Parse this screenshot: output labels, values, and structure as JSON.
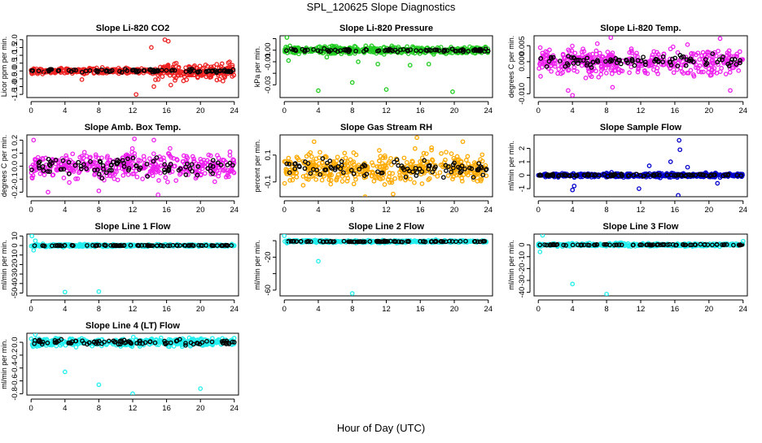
{
  "page": {
    "title": "SPL_120625  Slope Diagnostics",
    "xlabel": "Hour of Day (UTC)"
  },
  "chart_data": [
    {
      "id": "co2",
      "type": "scatter",
      "title": "Slope Li-820 CO2",
      "ylabel": "Licor ppm per min.",
      "color": "#ee2222",
      "ylim": [
        -1.7,
        2.25
      ],
      "yticks": [
        -1.5,
        -1.0,
        -0.5,
        0.0,
        0.5,
        1.0,
        1.5,
        2.0
      ],
      "yticklabels": [
        "-1.5",
        "-1.0",
        "-0.5",
        "0.0",
        "0.5",
        "1.0",
        "1.5",
        "2.0"
      ],
      "xlim": [
        -0.5,
        24.5
      ],
      "xticks": [
        0,
        4,
        8,
        12,
        16,
        20,
        24
      ],
      "xticklabels": [
        "0",
        "4",
        "8",
        "12",
        "16",
        "20",
        "24"
      ],
      "spread": 0.14,
      "spread_late": 0.42,
      "black_spread": 0.1,
      "outliers": [
        [
          15.8,
          2.0
        ],
        [
          16.2,
          1.9
        ],
        [
          14.2,
          1.5
        ],
        [
          16.5,
          -0.9
        ],
        [
          17,
          -0.6
        ],
        [
          6,
          -0.55
        ],
        [
          12.4,
          -1.5
        ],
        [
          14.5,
          -1.0
        ],
        [
          1.6,
          -0.1
        ]
      ]
    },
    {
      "id": "pressure",
      "type": "scatter",
      "title": "Slope Li-820 Pressure",
      "ylabel": "kPa per min.",
      "color": "#22cc22",
      "ylim": [
        -0.041,
        0.0125
      ],
      "yticks": [
        -0.03,
        -0.02,
        -0.01,
        0.0,
        0.01
      ],
      "yticklabels": [
        "-0.03",
        "",
        "-0.01",
        "0.00",
        ""
      ],
      "xlim": [
        -0.5,
        24.5
      ],
      "xticks": [
        0,
        4,
        8,
        12,
        16,
        20,
        24
      ],
      "xticklabels": [
        "0",
        "4",
        "8",
        "12",
        "16",
        "20",
        "24"
      ],
      "spread": 0.0025,
      "spread_late": 0.0025,
      "black_spread": 0.0015,
      "outliers": [
        [
          0.3,
          0.011
        ],
        [
          4,
          -0.035
        ],
        [
          8,
          -0.028
        ],
        [
          12,
          -0.034
        ],
        [
          19.8,
          -0.036
        ],
        [
          0.5,
          -0.009
        ],
        [
          11,
          -0.012
        ],
        [
          14.8,
          -0.013
        ],
        [
          8.7,
          -0.01
        ],
        [
          5,
          -0.006
        ],
        [
          17,
          -0.012
        ]
      ]
    },
    {
      "id": "temp",
      "type": "scatter",
      "title": "Slope Li-820 Temp.",
      "ylabel": "degrees C per min.",
      "color": "#ee22ee",
      "ylim": [
        -0.0112,
        0.0081
      ],
      "yticks": [
        -0.01,
        -0.005,
        0.0,
        0.005
      ],
      "yticklabels": [
        "-0.010",
        "",
        "0.000",
        "0.005"
      ],
      "xlim": [
        -0.5,
        24.5
      ],
      "xticks": [
        0,
        4,
        8,
        12,
        16,
        20,
        24
      ],
      "xticklabels": [
        "0",
        "4",
        "8",
        "12",
        "16",
        "20",
        "24"
      ],
      "spread": 0.0032,
      "spread_late": 0.0032,
      "black_spread": 0.002,
      "outliers": [
        [
          8.5,
          0.0075
        ],
        [
          8.7,
          -0.008
        ],
        [
          3.5,
          -0.009
        ],
        [
          22.5,
          -0.009
        ],
        [
          21.3,
          0.0072
        ],
        [
          4,
          -0.0105
        ]
      ]
    },
    {
      "id": "boxtemp",
      "type": "scatter",
      "title": "Slope Amb. Box Temp.",
      "ylabel": "degrees C per min.",
      "color": "#ee22ee",
      "ylim": [
        -0.235,
        0.24
      ],
      "yticks": [
        -0.2,
        -0.1,
        0.0,
        0.1,
        0.2
      ],
      "yticklabels": [
        "-0.2",
        "-0.1",
        "0.0",
        "0.1",
        "0.2"
      ],
      "xlim": [
        -0.5,
        24.5
      ],
      "xticks": [
        0,
        4,
        8,
        12,
        16,
        20,
        24
      ],
      "xticklabels": [
        "0",
        "4",
        "8",
        "12",
        "16",
        "20",
        "24"
      ],
      "spread": 0.08,
      "spread_late": 0.08,
      "black_spread": 0.07,
      "outliers": [
        [
          15,
          -0.22
        ],
        [
          12.2,
          0.21
        ],
        [
          14.5,
          0.2
        ],
        [
          2,
          -0.2
        ],
        [
          8,
          -0.19
        ],
        [
          0.3,
          0.2
        ]
      ]
    },
    {
      "id": "rh",
      "type": "scatter",
      "title": "Slope Gas Stream RH",
      "ylabel": "percent per min.",
      "color": "#ffaa00",
      "ylim": [
        -0.21,
        0.25
      ],
      "yticks": [
        -0.1,
        0.1
      ],
      "yticklabels": [
        "-0.1",
        "0.1"
      ],
      "xlim": [
        -0.5,
        24.5
      ],
      "xticks": [
        0,
        4,
        8,
        12,
        16,
        20,
        24
      ],
      "xticklabels": [
        "0",
        "4",
        "8",
        "12",
        "16",
        "20",
        "24"
      ],
      "spread": 0.09,
      "spread_late": 0.09,
      "black_spread": 0.06,
      "outliers": [
        [
          15.6,
          0.23
        ],
        [
          9.5,
          -0.21
        ],
        [
          3.5,
          0.2
        ],
        [
          21,
          0.2
        ],
        [
          12.8,
          -0.19
        ]
      ]
    },
    {
      "id": "sample",
      "type": "scatter",
      "title": "Slope Sample Flow",
      "ylabel": "ml/min per min.",
      "color": "#0000cc",
      "ylim": [
        -1.6,
        3.0
      ],
      "yticks": [
        -1,
        0,
        1,
        2
      ],
      "yticklabels": [
        "-1",
        "0",
        "1",
        "2"
      ],
      "xlim": [
        -0.5,
        24.5
      ],
      "xticks": [
        0,
        4,
        8,
        12,
        16,
        20,
        24
      ],
      "xticklabels": [
        "0",
        "4",
        "8",
        "12",
        "16",
        "20",
        "24"
      ],
      "spread": 0.12,
      "spread_late": 0.12,
      "black_spread": 0.08,
      "outliers": [
        [
          16.5,
          2.6
        ],
        [
          16.6,
          1.9
        ],
        [
          16.4,
          -1.5
        ],
        [
          4,
          -1.1
        ],
        [
          15.5,
          1.0
        ],
        [
          17.5,
          0.6
        ],
        [
          11.8,
          -1.0
        ],
        [
          4.2,
          -0.8
        ],
        [
          21,
          -0.6
        ],
        [
          13,
          0.7
        ]
      ]
    },
    {
      "id": "line1",
      "type": "scatter",
      "title": "Slope Line 1 Flow",
      "ylabel": "ml/min per min.",
      "color": "#22eeee",
      "ylim": [
        -53,
        12
      ],
      "yticks": [
        -50,
        -40,
        -30,
        -20,
        -10,
        0,
        10
      ],
      "yticklabels": [
        "-50",
        "-40",
        "-30",
        "-20",
        "-10",
        "0",
        "10"
      ],
      "xlim": [
        -0.5,
        24.5
      ],
      "xticks": [
        0,
        4,
        8,
        12,
        16,
        20,
        24
      ],
      "xticklabels": [
        "0",
        "4",
        "8",
        "12",
        "16",
        "20",
        "24"
      ],
      "spread": 1.0,
      "spread_late": 1.0,
      "black_spread": 0.4,
      "level": 0,
      "outliers": [
        [
          4,
          -49
        ],
        [
          8,
          -48.5
        ],
        [
          0.1,
          10
        ],
        [
          0.3,
          -5
        ],
        [
          0.5,
          5
        ]
      ]
    },
    {
      "id": "line2",
      "type": "scatter",
      "title": "Slope Line 2 Flow",
      "ylabel": "ml/min per min.",
      "color": "#22eeee",
      "ylim": [
        -67,
        8
      ],
      "yticks": [
        -60,
        -40,
        -20,
        0
      ],
      "yticklabels": [
        "-60",
        "",
        "-20",
        ""
      ],
      "xlim": [
        -0.5,
        24.5
      ],
      "xticks": [
        0,
        4,
        8,
        12,
        16,
        20,
        24
      ],
      "xticklabels": [
        "0",
        "4",
        "8",
        "12",
        "16",
        "20",
        "24"
      ],
      "spread": 1.2,
      "spread_late": 1.2,
      "black_spread": 0.6,
      "level": -1,
      "outliers": [
        [
          4,
          -25
        ],
        [
          8,
          -64
        ],
        [
          0,
          6
        ],
        [
          0.3,
          -3
        ]
      ]
    },
    {
      "id": "line3",
      "type": "scatter",
      "title": "Slope Line 3 Flow",
      "ylabel": "ml/min per min.",
      "color": "#22eeee",
      "ylim": [
        -43,
        9
      ],
      "yticks": [
        -40,
        -30,
        -20,
        -10,
        0
      ],
      "yticklabels": [
        "-40",
        "-30",
        "-20",
        "-10",
        "0"
      ],
      "xlim": [
        -0.5,
        24.5
      ],
      "xticks": [
        0,
        4,
        8,
        12,
        16,
        20,
        24
      ],
      "xticklabels": [
        "0",
        "4",
        "8",
        "12",
        "16",
        "20",
        "24"
      ],
      "spread": 1.0,
      "spread_late": 1.0,
      "black_spread": 0.4,
      "level": 0,
      "outliers": [
        [
          4,
          -33
        ],
        [
          8,
          -41.5
        ],
        [
          0.5,
          8
        ],
        [
          0.2,
          -6
        ],
        [
          24,
          3
        ]
      ]
    },
    {
      "id": "line4",
      "type": "scatter",
      "title": "Slope Line 4 (LT) Flow",
      "ylabel": "ml/min per min.",
      "color": "#22eeee",
      "ylim": [
        -0.82,
        0.14
      ],
      "yticks": [
        -0.8,
        -0.6,
        -0.4,
        -0.2,
        0.0
      ],
      "yticklabels": [
        "-0.8",
        "-0.6",
        "-0.4",
        "-0.2",
        "0.0"
      ],
      "xlim": [
        -0.5,
        24.5
      ],
      "xticks": [
        0,
        4,
        8,
        12,
        16,
        20,
        24
      ],
      "xticklabels": [
        "0",
        "4",
        "8",
        "12",
        "16",
        "20",
        "24"
      ],
      "spread": 0.05,
      "spread_late": 0.05,
      "black_spread": 0.04,
      "level": 0,
      "outliers": [
        [
          4,
          -0.46
        ],
        [
          8,
          -0.66
        ],
        [
          12,
          -0.8
        ],
        [
          20,
          -0.72
        ],
        [
          0.5,
          0.12
        ]
      ]
    }
  ]
}
